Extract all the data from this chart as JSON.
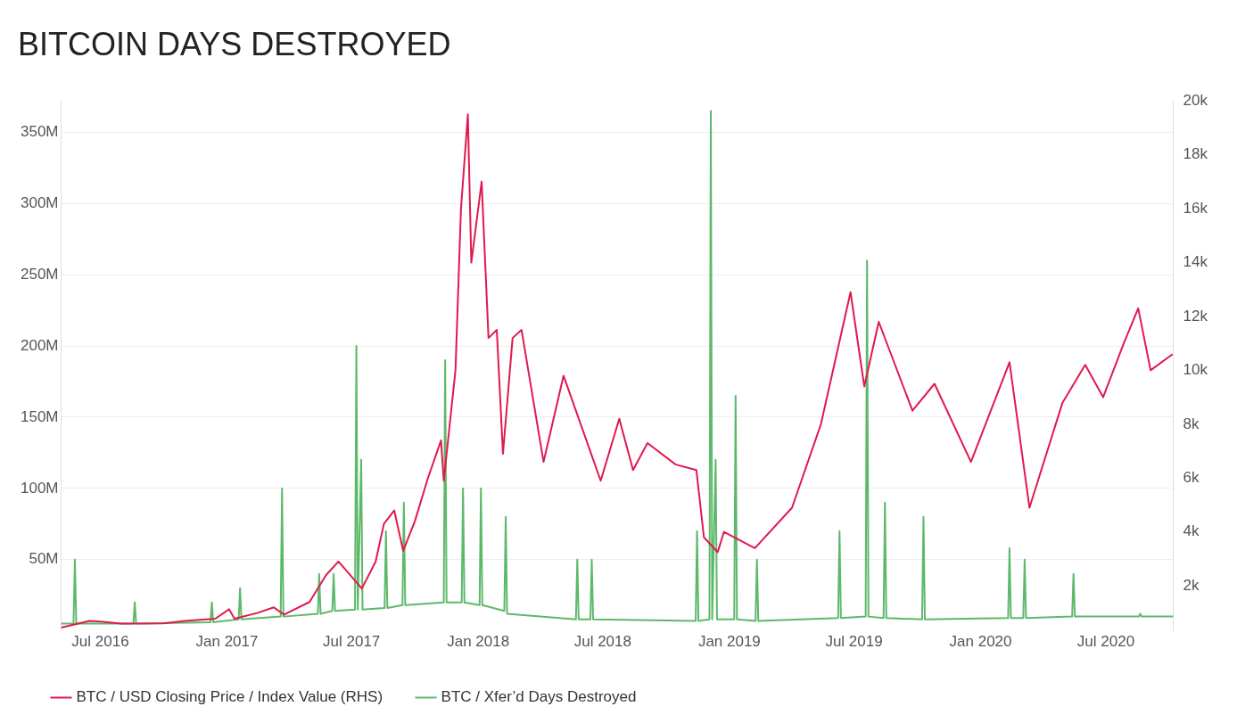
{
  "chart_data": {
    "type": "line",
    "title": "BITCOIN DAYS DESTROYED",
    "xlim": [
      "2016-05-05",
      "2020-10-07"
    ],
    "xticks": [
      {
        "value": "2016-07-01",
        "label": "Jul 2016"
      },
      {
        "value": "2017-01-01",
        "label": "Jan 2017"
      },
      {
        "value": "2017-07-01",
        "label": "Jul 2017"
      },
      {
        "value": "2018-01-01",
        "label": "Jan 2018"
      },
      {
        "value": "2018-07-01",
        "label": "Jul 2018"
      },
      {
        "value": "2019-01-01",
        "label": "Jan 2019"
      },
      {
        "value": "2019-07-01",
        "label": "Jul 2019"
      },
      {
        "value": "2020-01-01",
        "label": "Jan 2020"
      },
      {
        "value": "2020-07-01",
        "label": "Jul 2020"
      }
    ],
    "ylim": [
      0,
      372
    ],
    "yticks": [
      {
        "value": 50,
        "label": "50M"
      },
      {
        "value": 100,
        "label": "100M"
      },
      {
        "value": 150,
        "label": "150M"
      },
      {
        "value": 200,
        "label": "200M"
      },
      {
        "value": 250,
        "label": "250M"
      },
      {
        "value": 300,
        "label": "300M"
      },
      {
        "value": 350,
        "label": "350M"
      }
    ],
    "y2lim": [
      330,
      20000
    ],
    "y2ticks": [
      {
        "value": 2000,
        "label": "2k"
      },
      {
        "value": 4000,
        "label": "4k"
      },
      {
        "value": 6000,
        "label": "6k"
      },
      {
        "value": 8000,
        "label": "8k"
      },
      {
        "value": 10000,
        "label": "10k"
      },
      {
        "value": 12000,
        "label": "12k"
      },
      {
        "value": 14000,
        "label": "14k"
      },
      {
        "value": 16000,
        "label": "16k"
      },
      {
        "value": 18000,
        "label": "18k"
      },
      {
        "value": 20000,
        "label": "20k"
      }
    ],
    "grid": "y",
    "legend": "bottom left",
    "marker": "none",
    "line_style": "solid",
    "series": [
      {
        "name": "BTC / USD Closing Price / Index Value (RHS)",
        "color": "#e0194f",
        "axis": "y2",
        "x": [
          "2016-05-05",
          "2016-06-15",
          "2016-07-01",
          "2016-08-01",
          "2016-10-01",
          "2016-11-01",
          "2016-12-15",
          "2017-01-04",
          "2017-01-12",
          "2017-02-15",
          "2017-03-10",
          "2017-03-25",
          "2017-05-01",
          "2017-05-25",
          "2017-06-12",
          "2017-07-16",
          "2017-08-05",
          "2017-08-17",
          "2017-09-01",
          "2017-09-14",
          "2017-10-01",
          "2017-10-20",
          "2017-11-08",
          "2017-11-12",
          "2017-11-29",
          "2017-12-07",
          "2017-12-17",
          "2017-12-22",
          "2018-01-06",
          "2018-01-16",
          "2018-01-28",
          "2018-02-06",
          "2018-02-20",
          "2018-03-05",
          "2018-04-06",
          "2018-05-05",
          "2018-06-28",
          "2018-07-25",
          "2018-08-14",
          "2018-09-04",
          "2018-10-15",
          "2018-11-14",
          "2018-11-25",
          "2018-12-15",
          "2018-12-24",
          "2019-02-07",
          "2019-04-02",
          "2019-05-14",
          "2019-06-26",
          "2019-07-16",
          "2019-08-06",
          "2019-09-24",
          "2019-10-26",
          "2019-12-18",
          "2020-02-12",
          "2020-03-12",
          "2020-04-29",
          "2020-06-01",
          "2020-06-27",
          "2020-07-27",
          "2020-08-17",
          "2020-09-04",
          "2020-10-06"
        ],
        "values": [
          450,
          700,
          670,
          600,
          610,
          700,
          780,
          1130,
          780,
          1000,
          1200,
          930,
          1400,
          2400,
          2900,
          1900,
          2900,
          4300,
          4800,
          3300,
          4400,
          6000,
          7400,
          5900,
          10000,
          16000,
          19500,
          14000,
          17000,
          11200,
          11500,
          6900,
          11200,
          11500,
          6600,
          9800,
          5900,
          8200,
          6300,
          7300,
          6500,
          6300,
          3800,
          3250,
          4000,
          3400,
          4900,
          8000,
          12900,
          9400,
          11800,
          8500,
          9500,
          6600,
          10300,
          4900,
          8800,
          10200,
          9000,
          11000,
          12300,
          10000,
          10600
        ]
      },
      {
        "name": "BTC / Xfer’d Days Destroyed",
        "color": "#5cb96a",
        "x": [
          "2016-05-05",
          "2016-05-23",
          "2016-05-25",
          "2016-05-27",
          "2016-08-18",
          "2016-08-20",
          "2016-08-22",
          "2016-12-08",
          "2016-12-10",
          "2016-12-12",
          "2017-01-18",
          "2017-01-20",
          "2017-01-22",
          "2017-03-20",
          "2017-03-22",
          "2017-03-24",
          "2017-05-13",
          "2017-05-15",
          "2017-05-17",
          "2017-06-03",
          "2017-06-05",
          "2017-06-07",
          "2017-07-06",
          "2017-07-08",
          "2017-07-10",
          "2017-07-15",
          "2017-07-17",
          "2017-08-18",
          "2017-08-20",
          "2017-08-22",
          "2017-09-13",
          "2017-09-15",
          "2017-09-17",
          "2017-11-12",
          "2017-11-14",
          "2017-11-16",
          "2017-12-08",
          "2017-12-10",
          "2017-12-12",
          "2018-01-03",
          "2018-01-05",
          "2018-01-07",
          "2018-02-08",
          "2018-02-10",
          "2018-02-12",
          "2018-05-23",
          "2018-05-25",
          "2018-05-27",
          "2018-06-13",
          "2018-06-15",
          "2018-06-17",
          "2018-11-13",
          "2018-11-15",
          "2018-11-17",
          "2018-12-03",
          "2018-12-05",
          "2018-12-07",
          "2018-12-12",
          "2018-12-14",
          "2019-01-08",
          "2019-01-10",
          "2019-01-12",
          "2019-02-08",
          "2019-02-10",
          "2019-02-12",
          "2019-06-08",
          "2019-06-10",
          "2019-06-12",
          "2019-07-18",
          "2019-07-20",
          "2019-07-22",
          "2019-08-13",
          "2019-08-15",
          "2019-08-17",
          "2019-10-08",
          "2019-10-10",
          "2019-10-12",
          "2020-02-10",
          "2020-02-12",
          "2020-02-14",
          "2020-03-03",
          "2020-03-05",
          "2020-03-07",
          "2020-05-13",
          "2020-05-15",
          "2020-05-17",
          "2020-08-18",
          "2020-08-20",
          "2020-08-22",
          "2020-10-07"
        ],
        "values": [
          5,
          5,
          50,
          5,
          5,
          20,
          5,
          6,
          20,
          6,
          8,
          30,
          8,
          10,
          100,
          10,
          12,
          40,
          12,
          14,
          40,
          14,
          15,
          200,
          15,
          120,
          15,
          16,
          70,
          16,
          18,
          90,
          18,
          20,
          190,
          20,
          20,
          100,
          20,
          18,
          100,
          18,
          14,
          80,
          12,
          8,
          50,
          8,
          8,
          50,
          8,
          7,
          70,
          7,
          8,
          365,
          8,
          120,
          8,
          8,
          165,
          8,
          7,
          50,
          7,
          9,
          70,
          9,
          10,
          260,
          10,
          9,
          90,
          9,
          8,
          80,
          8,
          9,
          58,
          9,
          9,
          50,
          9,
          10,
          40,
          10,
          10,
          12,
          10,
          10
        ]
      }
    ]
  }
}
